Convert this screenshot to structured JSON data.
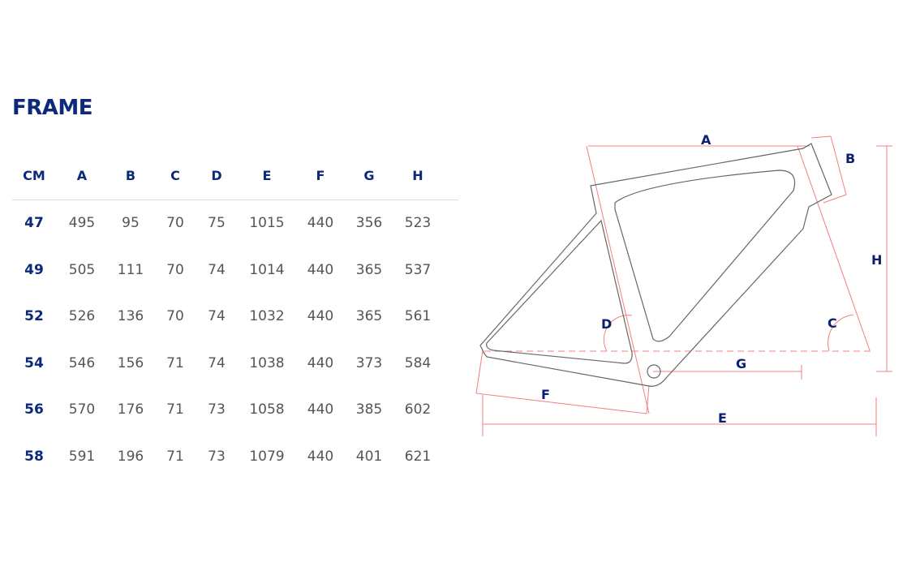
{
  "title": "FRAME",
  "table": {
    "headers": [
      "CM",
      "A",
      "B",
      "C",
      "D",
      "E",
      "F",
      "G",
      "H"
    ],
    "rows": [
      [
        "47",
        "495",
        "95",
        "70",
        "75",
        "1015",
        "440",
        "356",
        "523"
      ],
      [
        "49",
        "505",
        "111",
        "70",
        "74",
        "1014",
        "440",
        "365",
        "537"
      ],
      [
        "52",
        "526",
        "136",
        "70",
        "74",
        "1032",
        "440",
        "365",
        "561"
      ],
      [
        "54",
        "546",
        "156",
        "71",
        "74",
        "1038",
        "440",
        "373",
        "584"
      ],
      [
        "56",
        "570",
        "176",
        "71",
        "73",
        "1058",
        "440",
        "385",
        "602"
      ],
      [
        "58",
        "591",
        "196",
        "71",
        "73",
        "1079",
        "440",
        "401",
        "621"
      ]
    ]
  },
  "diagram": {
    "labels": {
      "A": "A",
      "B": "B",
      "C": "C",
      "D": "D",
      "E": "E",
      "F": "F",
      "G": "G",
      "H": "H"
    },
    "colors": {
      "frame": "#666666",
      "measure": "#f08080",
      "label": "#0d1f6e",
      "accent": "#0d2a7a"
    }
  }
}
